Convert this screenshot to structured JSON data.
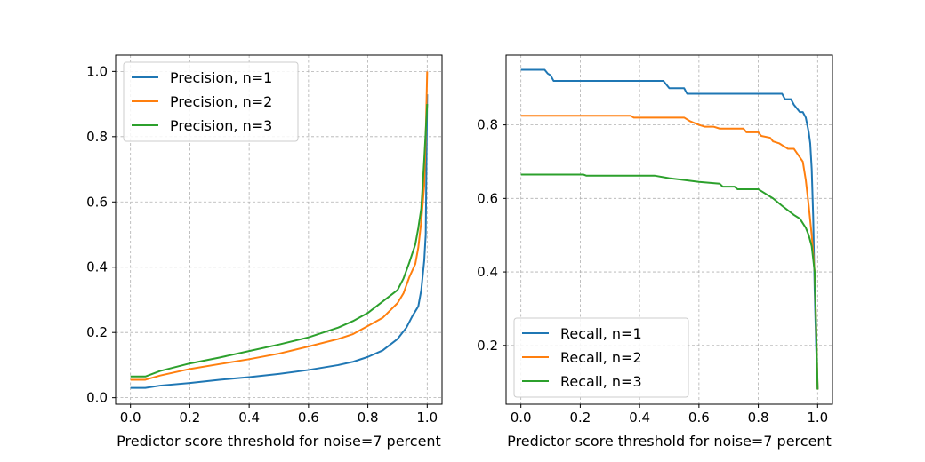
{
  "colors": {
    "n1": "#1f77b4",
    "n2": "#ff7f0e",
    "n3": "#2ca02c",
    "grid": "#b0b0b0",
    "axis": "#000000"
  },
  "chart_data": [
    {
      "type": "line",
      "title": "",
      "xlabel": "Predictor score threshold for noise=7 percent",
      "ylabel": "",
      "xlim": [
        -0.05,
        1.05
      ],
      "ylim": [
        -0.02,
        1.05
      ],
      "xticks": [
        0.0,
        0.2,
        0.4,
        0.6,
        0.8,
        1.0
      ],
      "xtick_labels": [
        "0.0",
        "0.2",
        "0.4",
        "0.6",
        "0.8",
        "1.0"
      ],
      "yticks": [
        0.0,
        0.2,
        0.4,
        0.6,
        0.8,
        1.0
      ],
      "ytick_labels": [
        "0.0",
        "0.2",
        "0.4",
        "0.6",
        "0.8",
        "1.0"
      ],
      "grid": true,
      "legend": "upper-left",
      "series": [
        {
          "name": "Precision, n=1",
          "color": "#1f77b4",
          "x": [
            0.0,
            0.05,
            0.1,
            0.2,
            0.3,
            0.4,
            0.5,
            0.6,
            0.7,
            0.75,
            0.8,
            0.85,
            0.9,
            0.93,
            0.95,
            0.97,
            0.98,
            0.99,
            0.995,
            1.0
          ],
          "y": [
            0.03,
            0.03,
            0.037,
            0.045,
            0.055,
            0.063,
            0.073,
            0.085,
            0.1,
            0.11,
            0.125,
            0.145,
            0.18,
            0.215,
            0.25,
            0.28,
            0.33,
            0.42,
            0.5,
            0.93
          ]
        },
        {
          "name": "Precision, n=2",
          "color": "#ff7f0e",
          "x": [
            0.0,
            0.05,
            0.1,
            0.2,
            0.3,
            0.4,
            0.5,
            0.6,
            0.7,
            0.75,
            0.8,
            0.85,
            0.9,
            0.92,
            0.94,
            0.96,
            0.97,
            0.98,
            0.99,
            0.995,
            1.0
          ],
          "y": [
            0.055,
            0.055,
            0.068,
            0.088,
            0.103,
            0.118,
            0.135,
            0.157,
            0.18,
            0.195,
            0.22,
            0.245,
            0.29,
            0.32,
            0.37,
            0.41,
            0.46,
            0.54,
            0.65,
            0.8,
            1.0
          ]
        },
        {
          "name": "Precision, n=3",
          "color": "#2ca02c",
          "x": [
            0.0,
            0.05,
            0.1,
            0.2,
            0.3,
            0.4,
            0.5,
            0.6,
            0.7,
            0.75,
            0.8,
            0.85,
            0.9,
            0.92,
            0.94,
            0.96,
            0.97,
            0.98,
            0.99,
            1.0
          ],
          "y": [
            0.065,
            0.065,
            0.082,
            0.105,
            0.123,
            0.143,
            0.163,
            0.185,
            0.215,
            0.235,
            0.26,
            0.295,
            0.33,
            0.365,
            0.415,
            0.47,
            0.52,
            0.58,
            0.73,
            0.9
          ]
        }
      ]
    },
    {
      "type": "line",
      "title": "",
      "xlabel": "Predictor score threshold for noise=7 percent",
      "ylabel": "",
      "xlim": [
        -0.05,
        1.05
      ],
      "ylim": [
        0.04,
        0.99
      ],
      "xticks": [
        0.0,
        0.2,
        0.4,
        0.6,
        0.8,
        1.0
      ],
      "xtick_labels": [
        "0.0",
        "0.2",
        "0.4",
        "0.6",
        "0.8",
        "1.0"
      ],
      "yticks": [
        0.2,
        0.4,
        0.6,
        0.8
      ],
      "ytick_labels": [
        "0.2",
        "0.4",
        "0.6",
        "0.8"
      ],
      "grid": true,
      "legend": "lower-left",
      "series": [
        {
          "name": "Recall, n=1",
          "color": "#1f77b4",
          "x": [
            0.0,
            0.08,
            0.09,
            0.1,
            0.11,
            0.12,
            0.48,
            0.5,
            0.55,
            0.56,
            0.6,
            0.88,
            0.89,
            0.91,
            0.92,
            0.94,
            0.95,
            0.96,
            0.97,
            0.975,
            0.98,
            0.985,
            0.99,
            0.995,
            1.0
          ],
          "y": [
            0.95,
            0.95,
            0.94,
            0.935,
            0.92,
            0.92,
            0.92,
            0.9,
            0.9,
            0.885,
            0.885,
            0.885,
            0.87,
            0.87,
            0.855,
            0.835,
            0.835,
            0.82,
            0.78,
            0.75,
            0.68,
            0.55,
            0.35,
            0.2,
            0.08
          ]
        },
        {
          "name": "Recall, n=2",
          "color": "#ff7f0e",
          "x": [
            0.0,
            0.37,
            0.38,
            0.55,
            0.57,
            0.6,
            0.62,
            0.65,
            0.67,
            0.75,
            0.76,
            0.8,
            0.81,
            0.84,
            0.85,
            0.87,
            0.88,
            0.9,
            0.92,
            0.95,
            0.96,
            0.97,
            0.98,
            0.99,
            0.995,
            1.0
          ],
          "y": [
            0.825,
            0.825,
            0.82,
            0.82,
            0.81,
            0.8,
            0.795,
            0.795,
            0.79,
            0.79,
            0.78,
            0.78,
            0.77,
            0.765,
            0.755,
            0.75,
            0.745,
            0.735,
            0.735,
            0.7,
            0.65,
            0.58,
            0.5,
            0.4,
            0.25,
            0.08
          ]
        },
        {
          "name": "Recall, n=3",
          "color": "#2ca02c",
          "x": [
            0.0,
            0.21,
            0.22,
            0.45,
            0.5,
            0.55,
            0.6,
            0.67,
            0.68,
            0.72,
            0.73,
            0.8,
            0.81,
            0.85,
            0.88,
            0.92,
            0.94,
            0.96,
            0.97,
            0.98,
            0.99,
            0.995,
            1.0
          ],
          "y": [
            0.665,
            0.665,
            0.662,
            0.662,
            0.655,
            0.65,
            0.645,
            0.64,
            0.632,
            0.632,
            0.625,
            0.625,
            0.62,
            0.6,
            0.58,
            0.555,
            0.545,
            0.52,
            0.5,
            0.47,
            0.4,
            0.25,
            0.08
          ]
        }
      ]
    }
  ]
}
